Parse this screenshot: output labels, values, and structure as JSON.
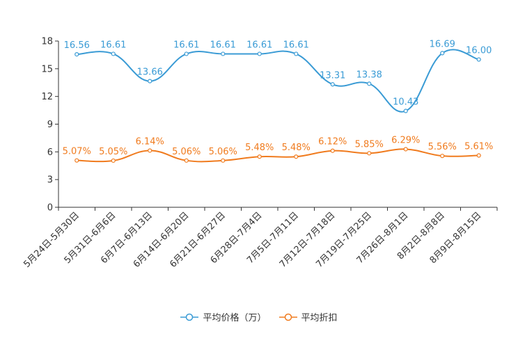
{
  "chart_data": {
    "type": "line",
    "categories": [
      "5月24日-5月30日",
      "5月31日-6月6日",
      "6月7日-6月13日",
      "6月14日-6月20日",
      "6月21日-6月27日",
      "6月28日-7月4日",
      "7月5日-7月11日",
      "7月12日-7月18日",
      "7月19日-7月25日",
      "7月26日-8月1日",
      "8月2日-8月8日",
      "8月9日-8月15日"
    ],
    "series": [
      {
        "name": "平均价格（万）",
        "color": "#3a9bd5",
        "values": [
          16.56,
          16.61,
          13.66,
          16.61,
          16.61,
          16.61,
          16.61,
          13.31,
          13.38,
          10.43,
          16.69,
          16.0
        ],
        "labels": [
          "16.56",
          "16.61",
          "13.66",
          "16.61",
          "16.61",
          "16.61",
          "16.61",
          "13.31",
          "13.38",
          "10.43",
          "16.69",
          "16.00"
        ]
      },
      {
        "name": "平均折扣",
        "color": "#f07b1e",
        "values": [
          5.07,
          5.05,
          6.14,
          5.06,
          5.06,
          5.48,
          5.48,
          6.12,
          5.85,
          6.29,
          5.56,
          5.61
        ],
        "labels": [
          "5.07%",
          "5.05%",
          "6.14%",
          "5.06%",
          "5.06%",
          "5.48%",
          "5.48%",
          "6.12%",
          "5.85%",
          "6.29%",
          "5.56%",
          "5.61%"
        ]
      }
    ],
    "ylim": [
      0,
      18
    ],
    "yticks": [
      0,
      3,
      6,
      9,
      12,
      15,
      18
    ],
    "legend_position": "bottom-center",
    "grid": false
  }
}
